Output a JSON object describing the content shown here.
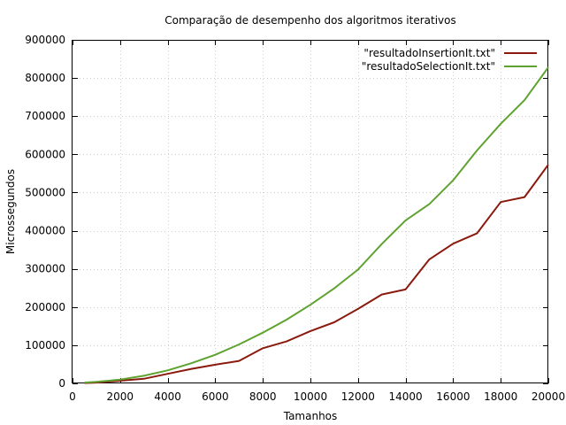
{
  "chart_data": {
    "type": "line",
    "title": "Comparação de desempenho dos algoritmos iterativos",
    "xlabel": "Tamanhos",
    "ylabel": "Microssegundos",
    "xlim": [
      0,
      20000
    ],
    "ylim": [
      0,
      900000
    ],
    "xticks": [
      0,
      2000,
      4000,
      6000,
      8000,
      10000,
      12000,
      14000,
      16000,
      18000,
      20000
    ],
    "yticks": [
      0,
      100000,
      200000,
      300000,
      400000,
      500000,
      600000,
      700000,
      800000,
      900000
    ],
    "grid": true,
    "legend_position": "top-right",
    "x": [
      500,
      1000,
      2000,
      3000,
      4000,
      5000,
      6000,
      7000,
      8000,
      9000,
      10000,
      11000,
      12000,
      13000,
      14000,
      15000,
      16000,
      17000,
      18000,
      19000,
      20000
    ],
    "series": [
      {
        "name": "\"resultadoInsertionIt.txt\"",
        "color": "#8b1a0e",
        "values": [
          1000,
          2000,
          7000,
          12000,
          25000,
          38000,
          49000,
          59000,
          92000,
          110000,
          137000,
          160000,
          195000,
          233000,
          246000,
          325000,
          366000,
          393000,
          475000,
          488000,
          573000
        ]
      },
      {
        "name": "\"resultadoSelectionIt.txt\"",
        "color": "#5ea32f",
        "values": [
          2000,
          4000,
          10000,
          20000,
          34000,
          53000,
          75000,
          102000,
          133000,
          167000,
          206000,
          249000,
          298000,
          365000,
          427000,
          470000,
          532000,
          610000,
          680000,
          742000,
          828000
        ]
      }
    ]
  }
}
